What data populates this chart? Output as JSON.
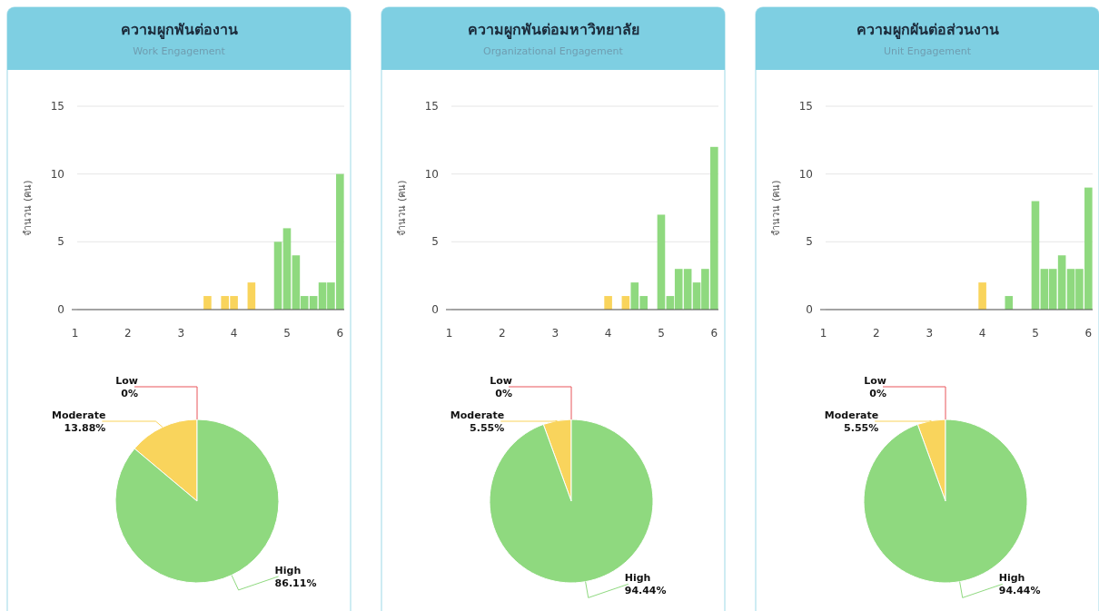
{
  "chart_data": [
    {
      "type": "bar",
      "title": "ความผูกพันต่องาน",
      "subtitle": "Work Engagement",
      "ylabel": "จำนวน (คน)",
      "x": [
        3.5,
        3.83,
        4.0,
        4.33,
        4.83,
        5.0,
        5.17,
        5.33,
        5.5,
        5.67,
        5.83,
        6.0
      ],
      "values": [
        1,
        1,
        1,
        2,
        5,
        6,
        4,
        1,
        1,
        2,
        2,
        10
      ],
      "colors": [
        "#f9d45c",
        "#f9d45c",
        "#f9d45c",
        "#f9d45c",
        "#8fd97f",
        "#8fd97f",
        "#8fd97f",
        "#8fd97f",
        "#8fd97f",
        "#8fd97f",
        "#8fd97f",
        "#8fd97f"
      ],
      "xlim": [
        0.94,
        6.08
      ],
      "xticks": [
        1,
        2,
        3,
        4,
        5,
        6
      ],
      "ylim": [
        0,
        15
      ],
      "yticks": [
        0,
        5,
        10,
        15
      ],
      "grid": "y"
    },
    {
      "type": "pie",
      "categories": [
        "Low",
        "Moderate",
        "High"
      ],
      "values": [
        0,
        13.88,
        86.11
      ],
      "value_labels": [
        "0%",
        "13.88%",
        "86.11%"
      ],
      "colors": [
        "#e8545a",
        "#f9d45c",
        "#8fd97f"
      ]
    },
    {
      "type": "bar",
      "title": "ความผูกพันต่อมหาวิทยาลัย",
      "subtitle": "Organizational Engagement",
      "ylabel": "จำนวน (คน)",
      "x": [
        4.0,
        4.33,
        4.5,
        4.67,
        5.0,
        5.17,
        5.33,
        5.5,
        5.67,
        5.83,
        6.0
      ],
      "values": [
        1,
        1,
        2,
        1,
        7,
        1,
        3,
        3,
        2,
        3,
        12
      ],
      "colors": [
        "#f9d45c",
        "#f9d45c",
        "#8fd97f",
        "#8fd97f",
        "#8fd97f",
        "#8fd97f",
        "#8fd97f",
        "#8fd97f",
        "#8fd97f",
        "#8fd97f",
        "#8fd97f"
      ],
      "xlim": [
        0.94,
        6.08
      ],
      "xticks": [
        1,
        2,
        3,
        4,
        5,
        6
      ],
      "ylim": [
        0,
        15
      ],
      "yticks": [
        0,
        5,
        10,
        15
      ],
      "grid": "y"
    },
    {
      "type": "pie",
      "categories": [
        "Low",
        "Moderate",
        "High"
      ],
      "values": [
        0,
        5.55,
        94.44
      ],
      "value_labels": [
        "0%",
        "5.55%",
        "94.44%"
      ],
      "colors": [
        "#e8545a",
        "#f9d45c",
        "#8fd97f"
      ]
    },
    {
      "type": "bar",
      "title": "ความผูกผันต่อส่วนงาน",
      "subtitle": "Unit Engagement",
      "ylabel": "จำนวน (คน)",
      "x": [
        4.0,
        4.5,
        5.0,
        5.17,
        5.33,
        5.5,
        5.67,
        5.83,
        6.0
      ],
      "values": [
        2,
        1,
        8,
        3,
        3,
        4,
        3,
        3,
        9
      ],
      "colors": [
        "#f9d45c",
        "#8fd97f",
        "#8fd97f",
        "#8fd97f",
        "#8fd97f",
        "#8fd97f",
        "#8fd97f",
        "#8fd97f",
        "#8fd97f"
      ],
      "xlim": [
        0.94,
        6.08
      ],
      "xticks": [
        1,
        2,
        3,
        4,
        5,
        6
      ],
      "ylim": [
        0,
        15
      ],
      "yticks": [
        0,
        5,
        10,
        15
      ],
      "grid": "y"
    },
    {
      "type": "pie",
      "categories": [
        "Low",
        "Moderate",
        "High"
      ],
      "values": [
        0,
        5.55,
        94.44
      ],
      "value_labels": [
        "0%",
        "5.55%",
        "94.44%"
      ],
      "colors": [
        "#e8545a",
        "#f9d45c",
        "#8fd97f"
      ]
    }
  ]
}
